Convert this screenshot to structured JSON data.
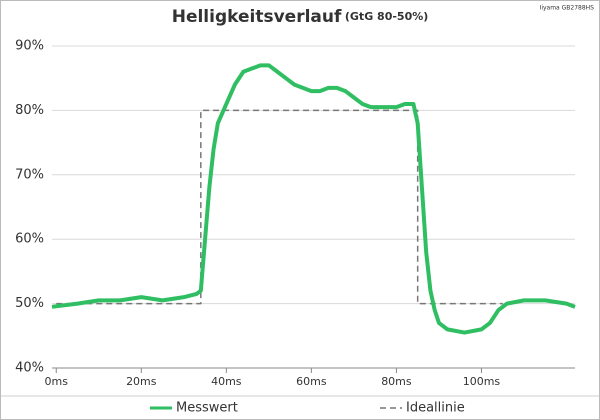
{
  "chart_data": {
    "type": "line",
    "title": "Helligkeitsverlauf",
    "subtitle": "(GtG 80-50%)",
    "source": "Iiyama GB2788HS",
    "xlim": [
      -1,
      122
    ],
    "xticks": [
      {
        "value": 0,
        "label": "0ms"
      },
      {
        "value": 20,
        "label": "20ms"
      },
      {
        "value": 40,
        "label": "40ms"
      },
      {
        "value": 60,
        "label": "60ms"
      },
      {
        "value": 80,
        "label": "80ms"
      },
      {
        "value": 100,
        "label": "100ms"
      }
    ],
    "ylim": [
      40,
      90
    ],
    "yticks": [
      {
        "value": 40,
        "label": "40%"
      },
      {
        "value": 50,
        "label": "50%"
      },
      {
        "value": 60,
        "label": "60%"
      },
      {
        "value": 70,
        "label": "70%"
      },
      {
        "value": 80,
        "label": "80%"
      },
      {
        "value": 90,
        "label": "90%"
      }
    ],
    "grid": true,
    "legend": "bottom",
    "series": [
      {
        "name": "Messwert",
        "color": "#2fbf62",
        "dashed": false,
        "x": [
          -1,
          5,
          10,
          15,
          20,
          25,
          30,
          33,
          34,
          35,
          36,
          37,
          38,
          40,
          42,
          44,
          46,
          48,
          50,
          52,
          54,
          56,
          58,
          60,
          62,
          64,
          66,
          68,
          70,
          72,
          74,
          76,
          78,
          80,
          82,
          84,
          85,
          86,
          87,
          88,
          89,
          90,
          92,
          96,
          100,
          102,
          104,
          106,
          110,
          115,
          120,
          122
        ],
        "values": [
          49.5,
          50,
          50.5,
          50.5,
          51,
          50.5,
          51,
          51.5,
          52,
          60,
          68,
          74,
          78,
          81,
          84,
          86,
          86.5,
          87,
          87,
          86,
          85,
          84,
          83.5,
          83,
          83,
          83.5,
          83.5,
          83,
          82,
          81,
          80.5,
          80.5,
          80.5,
          80.5,
          81,
          81,
          78,
          68,
          58,
          52,
          49,
          47,
          46,
          45.5,
          46,
          47,
          49,
          50,
          50.5,
          50.5,
          50,
          49.5
        ]
      },
      {
        "name": "Ideallinie",
        "color": "#777777",
        "dashed": true,
        "x": [
          0,
          34,
          34,
          85,
          85,
          105
        ],
        "values": [
          50,
          50,
          80,
          80,
          50,
          50
        ]
      }
    ]
  }
}
